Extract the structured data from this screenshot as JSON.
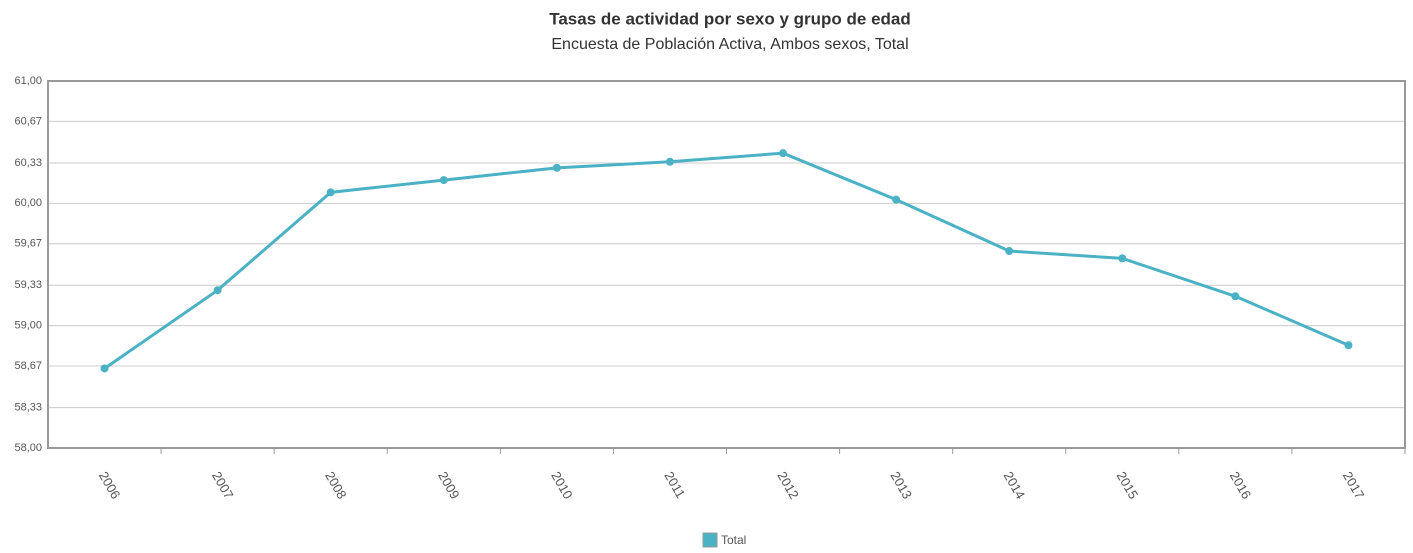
{
  "chart_data": {
    "type": "line",
    "title": "Tasas de actividad por sexo y grupo de edad",
    "subtitle": "Encuesta de Población Activa, Ambos sexos, Total",
    "categories": [
      "2006",
      "2007",
      "2008",
      "2009",
      "2010",
      "2011",
      "2012",
      "2013",
      "2014",
      "2015",
      "2016",
      "2017"
    ],
    "series": [
      {
        "name": "Total",
        "color": "#4bb2c5",
        "values": [
          58.65,
          59.29,
          60.09,
          60.19,
          60.29,
          60.34,
          60.41,
          60.03,
          59.61,
          59.55,
          59.24,
          58.84
        ]
      }
    ],
    "ylim": [
      58,
      61
    ],
    "yticks": [
      {
        "value": 58,
        "label": "58,00"
      },
      {
        "value": 58.33,
        "label": "58,33"
      },
      {
        "value": 58.67,
        "label": "58,67"
      },
      {
        "value": 59,
        "label": "59,00"
      },
      {
        "value": 59.33,
        "label": "59,33"
      },
      {
        "value": 59.67,
        "label": "59,67"
      },
      {
        "value": 60,
        "label": "60,00"
      },
      {
        "value": 60.33,
        "label": "60,33"
      },
      {
        "value": 60.67,
        "label": "60,67"
      },
      {
        "value": 61,
        "label": "61,00"
      }
    ],
    "grid": true,
    "legend": "bottom"
  }
}
